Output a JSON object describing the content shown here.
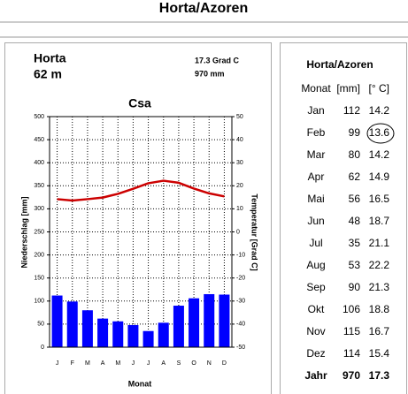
{
  "title": "Horta/Azoren",
  "station": {
    "name": "Horta",
    "elevation": "62 m",
    "annual_temp": "17.3 Grad C",
    "annual_precip": "970 mm"
  },
  "chart_data": {
    "type": "bar",
    "title": "Csa",
    "x_label": "Monat",
    "y_label": "Niederschlag [mm]",
    "y2_label": "Temperatur [Grad C]",
    "categories": [
      "J",
      "F",
      "M",
      "A",
      "M",
      "J",
      "J",
      "A",
      "S",
      "O",
      "N",
      "D"
    ],
    "series": [
      {
        "name": "Niederschlag",
        "type": "bar",
        "color": "#0000ff",
        "values": [
          112,
          99,
          80,
          62,
          56,
          48,
          35,
          53,
          90,
          106,
          115,
          114
        ]
      },
      {
        "name": "Temperatur",
        "type": "line",
        "axis": "y2",
        "color": "#cc0000",
        "values": [
          14.2,
          13.6,
          14.2,
          14.9,
          16.5,
          18.7,
          21.1,
          22.2,
          21.3,
          18.8,
          16.7,
          15.4
        ]
      }
    ],
    "ylim": [
      0,
      500
    ],
    "yticks": [
      0,
      50,
      100,
      150,
      200,
      250,
      300,
      350,
      400,
      450,
      500
    ],
    "y2lim": [
      -50,
      50
    ],
    "y2ticks": [
      -50,
      -40,
      -30,
      -20,
      -10,
      0,
      10,
      20,
      30,
      40,
      50
    ],
    "grid": true
  },
  "table": {
    "title": "Horta/Azoren",
    "headers": [
      "Monat",
      "[mm]",
      "[° C]"
    ],
    "months": [
      "Jan",
      "Feb",
      "Mar",
      "Apr",
      "Mai",
      "Jun",
      "Jul",
      "Aug",
      "Sep",
      "Okt",
      "Nov",
      "Dez"
    ],
    "total": [
      "Jahr",
      970,
      17.3
    ]
  }
}
